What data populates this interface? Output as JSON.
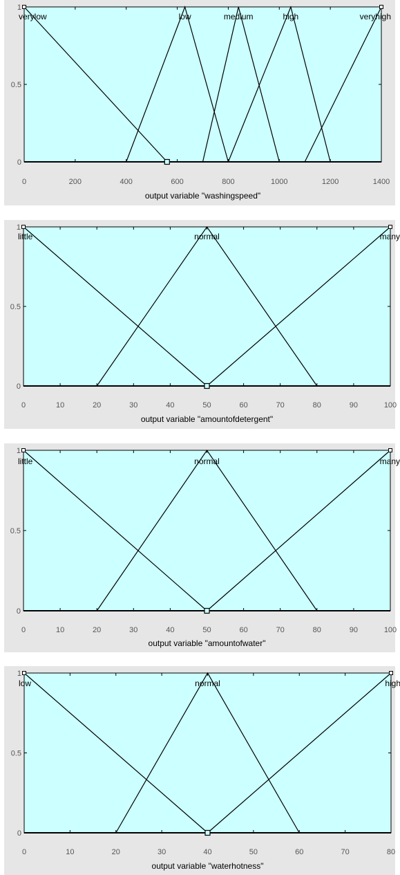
{
  "chart_data": [
    {
      "type": "line",
      "title": "",
      "xlabel": "output variable \"washingspeed\"",
      "ylabel": "",
      "xlim": [
        0,
        1400
      ],
      "ylim": [
        0,
        1
      ],
      "xticks": [
        0,
        200,
        400,
        600,
        800,
        1000,
        1200,
        1400
      ],
      "yticks": [
        0,
        0.5,
        1
      ],
      "ytick_labels": [
        "0",
        "0.5",
        "1"
      ],
      "grid": false,
      "marker_x": 560,
      "series": [
        {
          "name": "verylow",
          "x": [
            0,
            560
          ],
          "y": [
            1,
            0
          ]
        },
        {
          "name": "low",
          "x": [
            400,
            630,
            800
          ],
          "y": [
            0,
            1,
            0
          ]
        },
        {
          "name": "medium",
          "x": [
            700,
            840,
            1000
          ],
          "y": [
            0,
            1,
            0
          ]
        },
        {
          "name": "high",
          "x": [
            800,
            1045,
            1200
          ],
          "y": [
            0,
            1,
            0
          ]
        },
        {
          "name": "veryhigh",
          "x": [
            1100,
            1400
          ],
          "y": [
            0,
            1
          ]
        }
      ]
    },
    {
      "type": "line",
      "title": "",
      "xlabel": "output variable \"amountofdetergent\"",
      "ylabel": "",
      "xlim": [
        0,
        100
      ],
      "ylim": [
        0,
        1
      ],
      "xticks": [
        0,
        10,
        20,
        30,
        40,
        50,
        60,
        70,
        80,
        90,
        100
      ],
      "yticks": [
        0,
        0.5,
        1
      ],
      "ytick_labels": [
        "0",
        "0.5",
        "1"
      ],
      "grid": false,
      "marker_x": 50,
      "series": [
        {
          "name": "little",
          "x": [
            0,
            50
          ],
          "y": [
            1,
            0
          ]
        },
        {
          "name": "normal",
          "x": [
            20,
            50,
            80
          ],
          "y": [
            0,
            1,
            0
          ]
        },
        {
          "name": "many",
          "x": [
            50,
            100
          ],
          "y": [
            0,
            1
          ]
        }
      ]
    },
    {
      "type": "line",
      "title": "",
      "xlabel": "output variable \"amountofwater\"",
      "ylabel": "",
      "xlim": [
        0,
        100
      ],
      "ylim": [
        0,
        1
      ],
      "xticks": [
        0,
        10,
        20,
        30,
        40,
        50,
        60,
        70,
        80,
        90,
        100
      ],
      "yticks": [
        0,
        0.5,
        1
      ],
      "ytick_labels": [
        "0",
        "0.5",
        "1"
      ],
      "grid": false,
      "marker_x": 50,
      "series": [
        {
          "name": "little",
          "x": [
            0,
            50
          ],
          "y": [
            1,
            0
          ]
        },
        {
          "name": "normal",
          "x": [
            20,
            50,
            80
          ],
          "y": [
            0,
            1,
            0
          ]
        },
        {
          "name": "many",
          "x": [
            50,
            100
          ],
          "y": [
            0,
            1
          ]
        }
      ]
    },
    {
      "type": "line",
      "title": "",
      "xlabel": "output variable \"waterhotness\"",
      "ylabel": "",
      "xlim": [
        0,
        80
      ],
      "ylim": [
        0,
        1
      ],
      "xticks": [
        0,
        10,
        20,
        30,
        40,
        50,
        60,
        70,
        80
      ],
      "yticks": [
        0,
        0.5,
        1
      ],
      "ytick_labels": [
        "0",
        "0.5",
        "1"
      ],
      "grid": false,
      "marker_x": 40,
      "series": [
        {
          "name": "low",
          "x": [
            0,
            40
          ],
          "y": [
            1,
            0
          ]
        },
        {
          "name": "normal",
          "x": [
            20,
            40,
            60
          ],
          "y": [
            0,
            1,
            0
          ]
        },
        {
          "name": "high",
          "x": [
            40,
            80
          ],
          "y": [
            0,
            1
          ]
        }
      ]
    }
  ]
}
